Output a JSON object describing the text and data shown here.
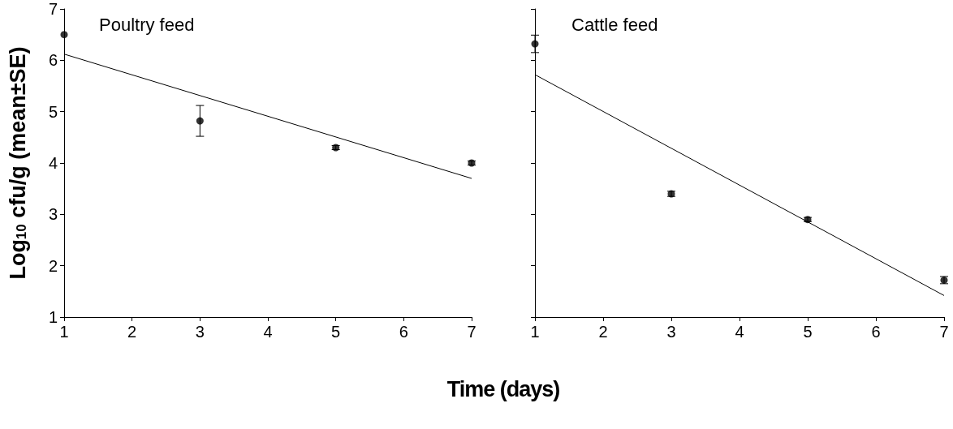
{
  "chart_data": [
    {
      "type": "scatter",
      "title": "Poultry feed",
      "ylabel": "Log$_{10}$ cfu/g (mean±SE)",
      "xlabel": "Time (days)",
      "xlim": [
        1,
        7
      ],
      "xticks": [
        1,
        2,
        3,
        4,
        5,
        6,
        7
      ],
      "ylim": [
        1,
        7
      ],
      "yticks": [
        1,
        2,
        3,
        4,
        5,
        6,
        7
      ],
      "grid": false,
      "series": [
        {
          "color": "#000000",
          "marker": "circle",
          "x": [
            1,
            3,
            5,
            7
          ],
          "values": [
            6.5,
            4.82,
            4.3,
            4.0
          ],
          "errors": [
            null,
            0.3,
            0.04,
            0.04
          ]
        },
        {
          "type": "line",
          "marker": "none",
          "color": "#000000",
          "x": [
            1,
            7
          ],
          "values": [
            6.12,
            3.7
          ]
        }
      ]
    },
    {
      "type": "scatter",
      "title": "Cattle feed",
      "xlim": [
        1,
        7
      ],
      "xticks": [
        1,
        2,
        3,
        4,
        5,
        6,
        7
      ],
      "ylim": [
        1,
        7
      ],
      "yticks": [
        1,
        2,
        3,
        4,
        5,
        6,
        7
      ],
      "grid": false,
      "tick_labels": "x",
      "series": [
        {
          "color": "#000000",
          "marker": "circle",
          "x": [
            1,
            3,
            5,
            7
          ],
          "values": [
            6.32,
            3.4,
            2.9,
            1.72
          ],
          "errors": [
            0.17,
            0.05,
            0.04,
            0.07
          ]
        },
        {
          "type": "line",
          "marker": "none",
          "color": "#000000",
          "x": [
            1,
            7
          ],
          "values": [
            5.72,
            1.42
          ]
        }
      ]
    }
  ]
}
